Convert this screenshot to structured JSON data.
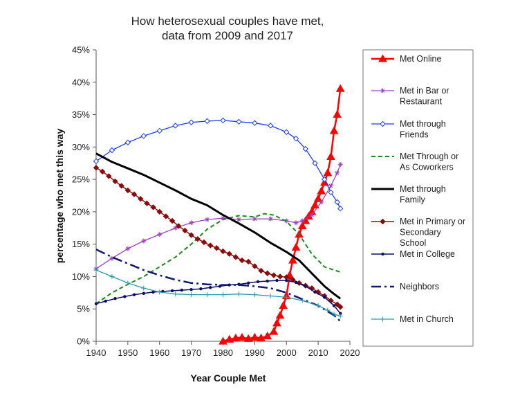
{
  "chart_data": {
    "type": "line",
    "title_lines": [
      "How heterosexual couples have met,",
      "data from 2009 and 2017"
    ],
    "xlabel": "Year Couple Met",
    "ylabel": "percentage who met this way",
    "xlim": [
      1940,
      2020
    ],
    "ylim": [
      0,
      45
    ],
    "x_ticks": [
      "1940",
      "1950",
      "1960",
      "1970",
      "1980",
      "1990",
      "2000",
      "2010",
      "2020"
    ],
    "y_ticks": [
      "0%",
      "5%",
      "10%",
      "15%",
      "20%",
      "25%",
      "30%",
      "35%",
      "40%",
      "45%"
    ],
    "grid": false,
    "legend_position": "right",
    "series": [
      {
        "name": "Met Online",
        "legend_lines": [
          "Met Online"
        ],
        "color": "#ff0000",
        "width": 2.5,
        "dash": "",
        "marker": "triangle",
        "points": [
          [
            1980,
            0
          ],
          [
            1982,
            0.3
          ],
          [
            1984,
            0.5
          ],
          [
            1986,
            0.6
          ],
          [
            1988,
            0.4
          ],
          [
            1990,
            0.6
          ],
          [
            1992,
            0.5
          ],
          [
            1994,
            0.8
          ],
          [
            1996,
            1.5
          ],
          [
            1997,
            2.8
          ],
          [
            1998,
            4.0
          ],
          [
            1999,
            5.5
          ],
          [
            2000,
            7.0
          ],
          [
            2001,
            10.2
          ],
          [
            2002,
            12.5
          ],
          [
            2003,
            14.5
          ],
          [
            2004,
            16.5
          ],
          [
            2005,
            17.8
          ],
          [
            2006,
            18.6
          ],
          [
            2007,
            19.3
          ],
          [
            2008,
            20.0
          ],
          [
            2009,
            21.0
          ],
          [
            2010,
            22.0
          ],
          [
            2011,
            23.2
          ],
          [
            2012,
            24.5
          ],
          [
            2013,
            26.0
          ],
          [
            2014,
            28.5
          ],
          [
            2015,
            32.5
          ],
          [
            2016,
            35.0
          ],
          [
            2017,
            39.0
          ]
        ]
      },
      {
        "name": "Met in Bar or Restaurant",
        "legend_lines": [
          "Met in Bar or",
          "Restaurant"
        ],
        "color": "#a040c0",
        "width": 1.3,
        "dash": "",
        "marker": "star",
        "points": [
          [
            1940,
            11.2
          ],
          [
            1945,
            12.8
          ],
          [
            1950,
            14.3
          ],
          [
            1955,
            15.5
          ],
          [
            1960,
            16.5
          ],
          [
            1965,
            17.5
          ],
          [
            1970,
            18.3
          ],
          [
            1975,
            18.8
          ],
          [
            1980,
            19.0
          ],
          [
            1985,
            18.8
          ],
          [
            1990,
            18.9
          ],
          [
            1995,
            18.9
          ],
          [
            2000,
            18.6
          ],
          [
            2003,
            18.3
          ],
          [
            2005,
            18.6
          ],
          [
            2008,
            19.5
          ],
          [
            2011,
            21.5
          ],
          [
            2014,
            24.0
          ],
          [
            2016,
            26.0
          ],
          [
            2017,
            27.3
          ]
        ]
      },
      {
        "name": "Met through Friends",
        "legend_lines": [
          "Met through",
          "Friends"
        ],
        "color": "#1a3cff",
        "width": 1.3,
        "dash": "",
        "marker": "diamond-open",
        "points": [
          [
            1940,
            27.8
          ],
          [
            1945,
            29.5
          ],
          [
            1950,
            30.7
          ],
          [
            1955,
            31.7
          ],
          [
            1960,
            32.5
          ],
          [
            1965,
            33.3
          ],
          [
            1970,
            33.8
          ],
          [
            1975,
            34.0
          ],
          [
            1980,
            34.1
          ],
          [
            1985,
            33.9
          ],
          [
            1990,
            33.7
          ],
          [
            1995,
            33.3
          ],
          [
            2000,
            32.3
          ],
          [
            2003,
            31.3
          ],
          [
            2006,
            29.7
          ],
          [
            2009,
            27.5
          ],
          [
            2012,
            25.0
          ],
          [
            2014,
            23.0
          ],
          [
            2016,
            21.5
          ],
          [
            2017,
            20.5
          ]
        ]
      },
      {
        "name": "Met Through or As Coworkers",
        "legend_lines": [
          "Met Through or",
          "As Coworkers"
        ],
        "color": "#1a8a1a",
        "width": 2.0,
        "dash": "6,4",
        "marker": "none",
        "points": [
          [
            1940,
            5.8
          ],
          [
            1945,
            7.5
          ],
          [
            1950,
            8.8
          ],
          [
            1955,
            10.0
          ],
          [
            1960,
            11.5
          ],
          [
            1965,
            13.0
          ],
          [
            1970,
            15.0
          ],
          [
            1975,
            17.3
          ],
          [
            1980,
            18.8
          ],
          [
            1985,
            19.4
          ],
          [
            1990,
            19.2
          ],
          [
            1993,
            19.7
          ],
          [
            1996,
            19.5
          ],
          [
            2000,
            18.5
          ],
          [
            2004,
            16.5
          ],
          [
            2008,
            13.5
          ],
          [
            2012,
            11.5
          ],
          [
            2015,
            11.0
          ],
          [
            2017,
            10.7
          ]
        ]
      },
      {
        "name": "Met through Family",
        "legend_lines": [
          "Met through",
          "Family"
        ],
        "color": "#000000",
        "width": 3.0,
        "dash": "",
        "marker": "none",
        "points": [
          [
            1940,
            29.0
          ],
          [
            1945,
            27.7
          ],
          [
            1950,
            26.7
          ],
          [
            1955,
            25.7
          ],
          [
            1960,
            24.5
          ],
          [
            1965,
            23.3
          ],
          [
            1970,
            22.0
          ],
          [
            1975,
            21.0
          ],
          [
            1980,
            19.5
          ],
          [
            1985,
            18.2
          ],
          [
            1990,
            16.8
          ],
          [
            1995,
            15.2
          ],
          [
            2000,
            13.8
          ],
          [
            2004,
            12.5
          ],
          [
            2008,
            10.5
          ],
          [
            2012,
            8.5
          ],
          [
            2015,
            7.3
          ],
          [
            2017,
            6.6
          ]
        ]
      },
      {
        "name": "Met in Primary or Secondary School",
        "legend_lines": [
          "Met in Primary or",
          "Secondary",
          "School"
        ],
        "color": "#8b0a0a",
        "width": 1.5,
        "dash": "",
        "marker": "diamond",
        "points": [
          [
            1940,
            26.8
          ],
          [
            1942,
            26.2
          ],
          [
            1944,
            25.5
          ],
          [
            1946,
            24.7
          ],
          [
            1948,
            24.0
          ],
          [
            1950,
            23.3
          ],
          [
            1952,
            22.7
          ],
          [
            1954,
            22.0
          ],
          [
            1956,
            21.3
          ],
          [
            1958,
            20.7
          ],
          [
            1960,
            20.0
          ],
          [
            1962,
            19.3
          ],
          [
            1964,
            18.6
          ],
          [
            1966,
            17.8
          ],
          [
            1968,
            17.1
          ],
          [
            1970,
            16.4
          ],
          [
            1972,
            15.8
          ],
          [
            1974,
            15.3
          ],
          [
            1976,
            14.8
          ],
          [
            1978,
            14.4
          ],
          [
            1980,
            13.9
          ],
          [
            1982,
            13.5
          ],
          [
            1984,
            13.0
          ],
          [
            1986,
            12.5
          ],
          [
            1988,
            12.3
          ],
          [
            1990,
            11.6
          ],
          [
            1992,
            10.9
          ],
          [
            1994,
            10.5
          ],
          [
            1996,
            10.2
          ],
          [
            1998,
            10.0
          ],
          [
            2000,
            9.9
          ],
          [
            2002,
            9.5
          ],
          [
            2004,
            9.0
          ],
          [
            2006,
            8.6
          ],
          [
            2008,
            8.2
          ],
          [
            2010,
            7.6
          ],
          [
            2012,
            7.0
          ],
          [
            2014,
            6.3
          ],
          [
            2016,
            5.7
          ],
          [
            2017,
            5.3
          ]
        ]
      },
      {
        "name": "Met in College",
        "legend_lines": [
          "Met in College"
        ],
        "color": "#0b0b6b",
        "width": 1.5,
        "dash": "",
        "marker": "dot",
        "points": [
          [
            1940,
            5.8
          ],
          [
            1943,
            6.2
          ],
          [
            1946,
            6.6
          ],
          [
            1949,
            6.9
          ],
          [
            1952,
            7.2
          ],
          [
            1955,
            7.4
          ],
          [
            1958,
            7.6
          ],
          [
            1961,
            7.7
          ],
          [
            1964,
            7.8
          ],
          [
            1967,
            7.9
          ],
          [
            1970,
            8.0
          ],
          [
            1973,
            8.1
          ],
          [
            1976,
            8.3
          ],
          [
            1979,
            8.5
          ],
          [
            1982,
            8.7
          ],
          [
            1985,
            8.8
          ],
          [
            1988,
            9.0
          ],
          [
            1991,
            9.2
          ],
          [
            1994,
            9.3
          ],
          [
            1997,
            9.4
          ],
          [
            2000,
            9.4
          ],
          [
            2003,
            9.1
          ],
          [
            2006,
            8.5
          ],
          [
            2009,
            7.6
          ],
          [
            2012,
            6.8
          ],
          [
            2015,
            5.5
          ],
          [
            2017,
            4.3
          ]
        ]
      },
      {
        "name": "Neighbors",
        "legend_lines": [
          "Neighbors"
        ],
        "color": "#0b1a70",
        "width": 2.5,
        "dash": "14,5,3,5",
        "marker": "none",
        "points": [
          [
            1940,
            14.2
          ],
          [
            1945,
            13.0
          ],
          [
            1950,
            12.0
          ],
          [
            1955,
            11.0
          ],
          [
            1960,
            10.2
          ],
          [
            1965,
            9.5
          ],
          [
            1970,
            9.0
          ],
          [
            1975,
            8.8
          ],
          [
            1980,
            8.7
          ],
          [
            1985,
            8.7
          ],
          [
            1990,
            8.5
          ],
          [
            1995,
            8.2
          ],
          [
            2000,
            7.5
          ],
          [
            2005,
            6.5
          ],
          [
            2010,
            5.5
          ],
          [
            2015,
            4.0
          ],
          [
            2017,
            3.1
          ]
        ]
      },
      {
        "name": "Met in Church",
        "legend_lines": [
          "Met in Church"
        ],
        "color": "#2a9aa5",
        "width": 1.3,
        "dash": "",
        "marker": "plus",
        "points": [
          [
            1940,
            11.0
          ],
          [
            1945,
            10.0
          ],
          [
            1950,
            9.0
          ],
          [
            1955,
            8.2
          ],
          [
            1960,
            7.6
          ],
          [
            1965,
            7.3
          ],
          [
            1970,
            7.2
          ],
          [
            1975,
            7.2
          ],
          [
            1980,
            7.2
          ],
          [
            1985,
            7.3
          ],
          [
            1990,
            7.2
          ],
          [
            1995,
            7.0
          ],
          [
            2000,
            6.8
          ],
          [
            2005,
            6.3
          ],
          [
            2010,
            5.5
          ],
          [
            2013,
            4.8
          ],
          [
            2015,
            4.2
          ],
          [
            2017,
            3.9
          ]
        ]
      }
    ]
  }
}
